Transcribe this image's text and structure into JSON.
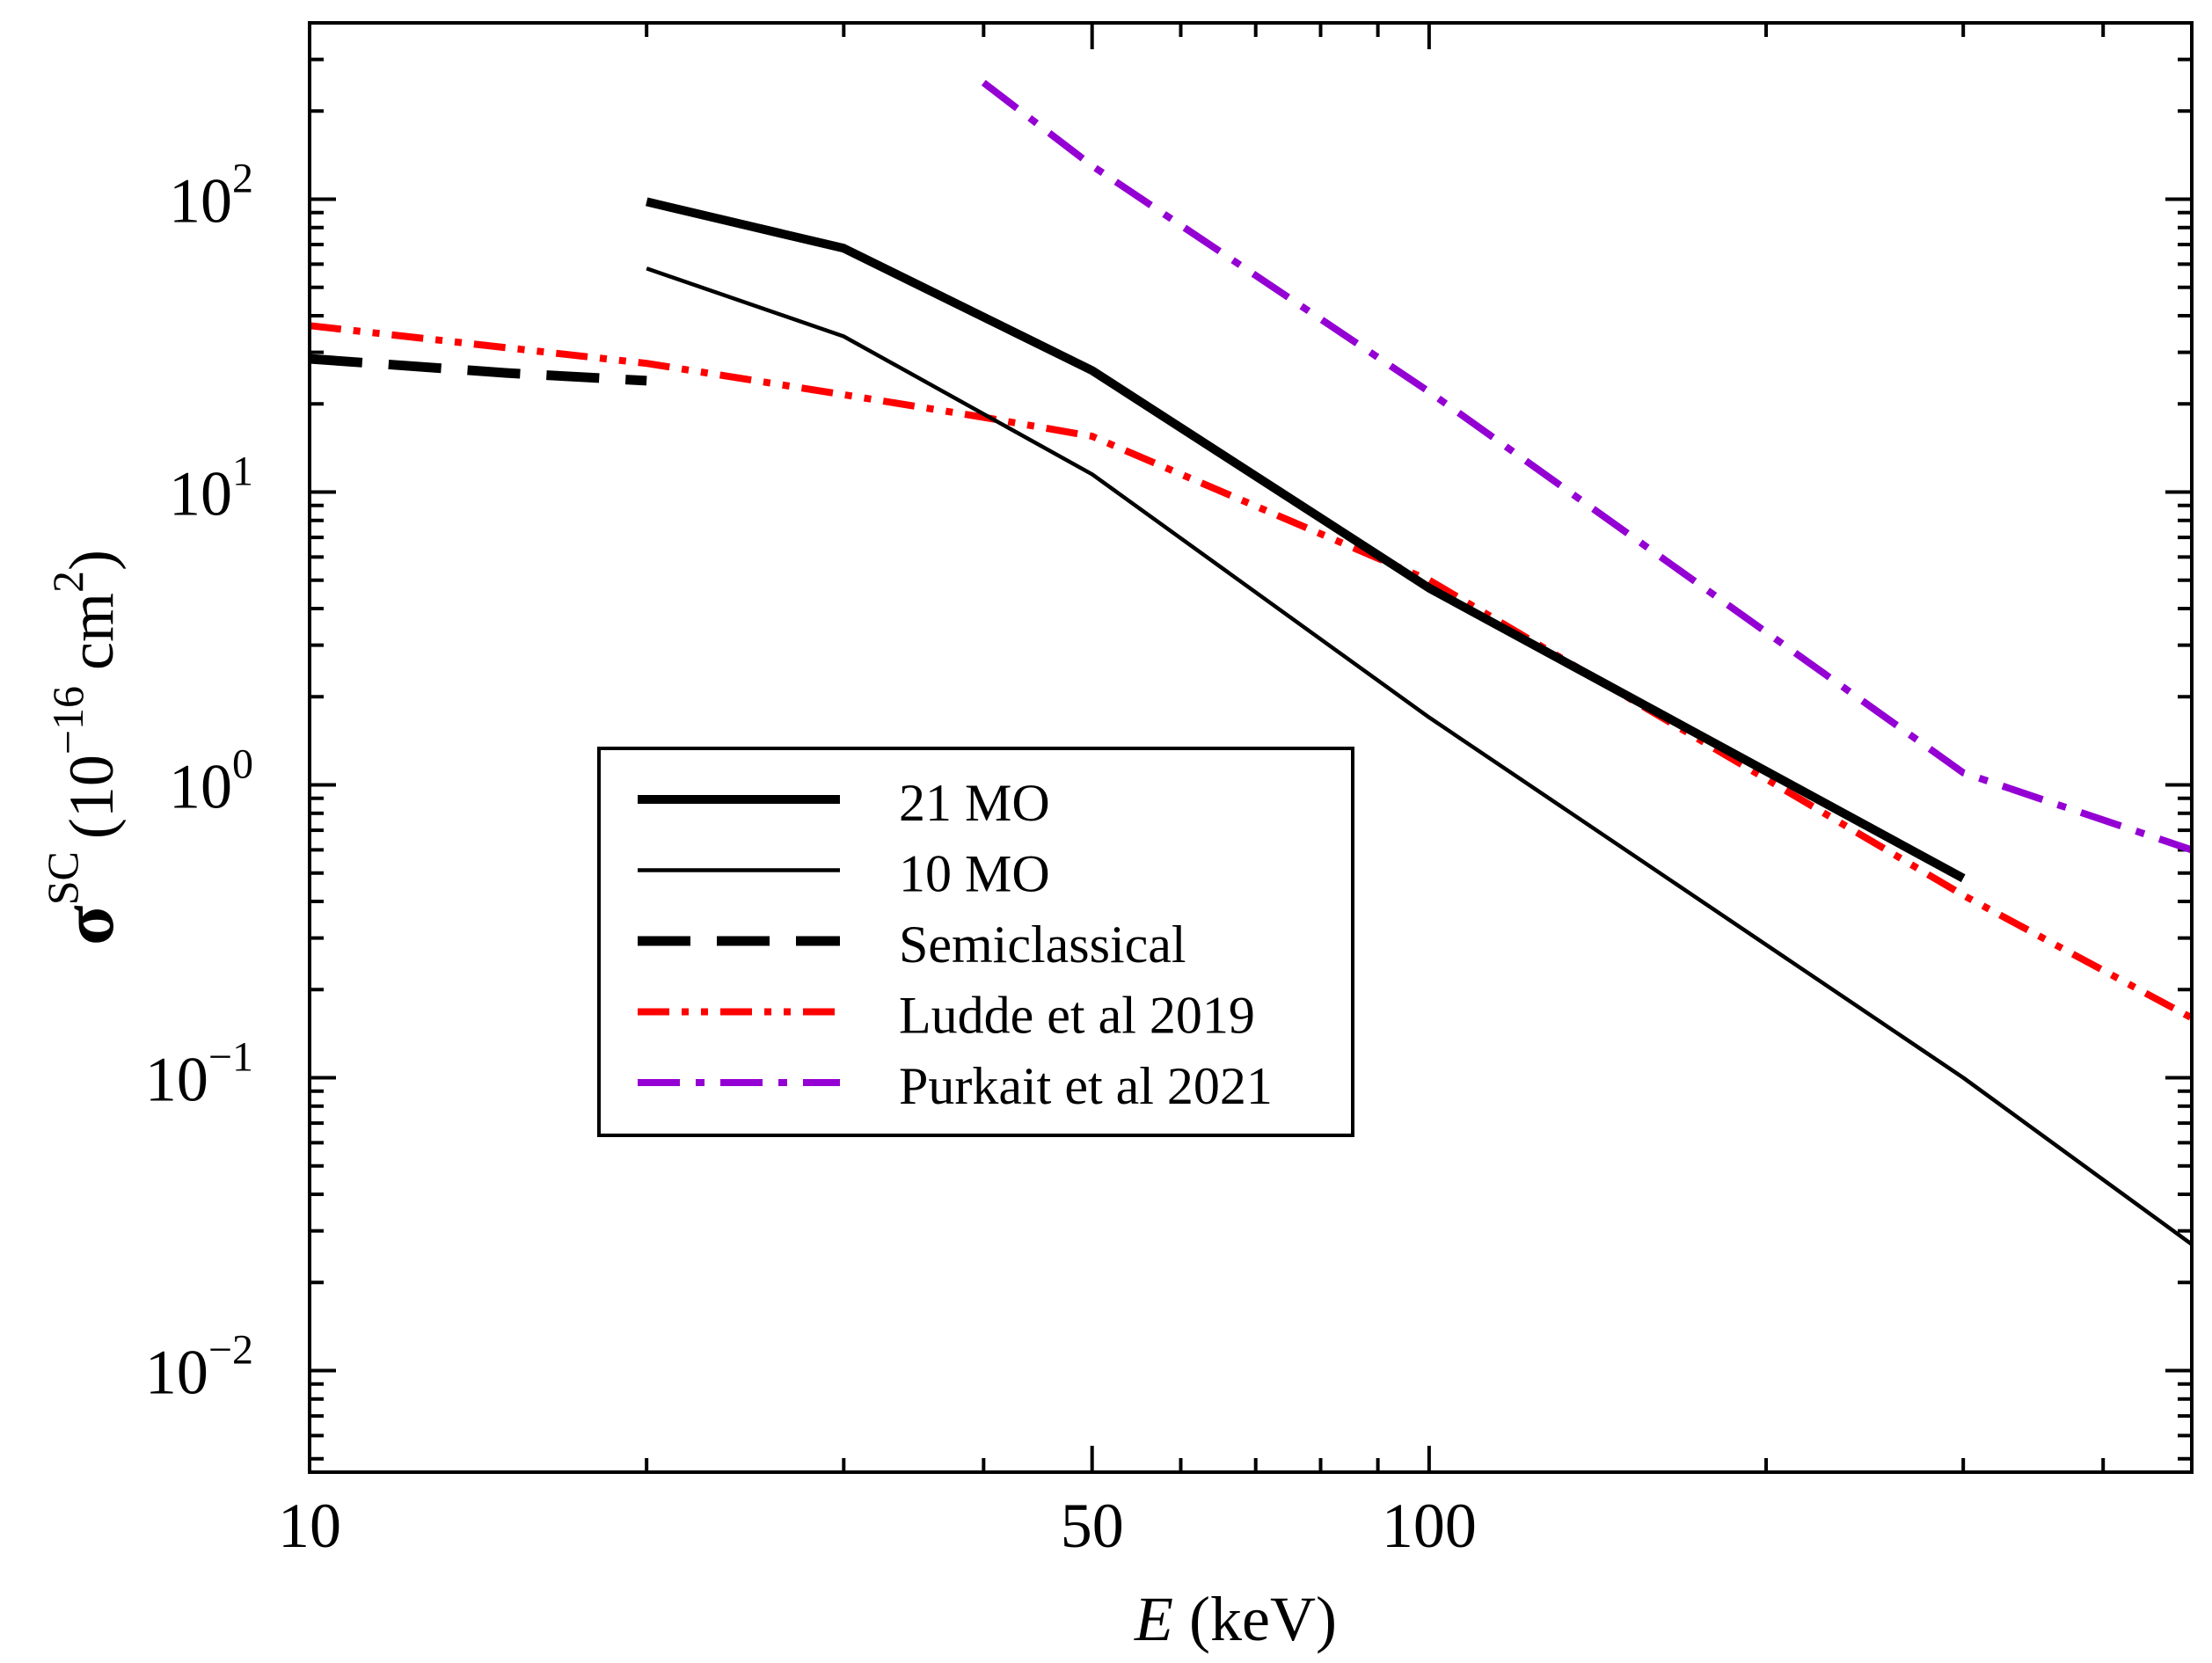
{
  "chart_data": {
    "type": "line",
    "x_scale": "log",
    "y_scale": "log",
    "xlim": [
      10,
      480
    ],
    "ylim": [
      0.0045,
      400
    ],
    "x_ticks": [
      {
        "value": 10,
        "label": "10"
      },
      {
        "value": 50,
        "label": "50"
      },
      {
        "value": 100,
        "label": "100"
      }
    ],
    "x_minor_ticks": [
      20,
      30,
      40,
      60,
      70,
      80,
      90,
      200,
      300,
      400
    ],
    "y_ticks": [
      {
        "value": 0.01,
        "mant": "10",
        "exp": "−2"
      },
      {
        "value": 0.1,
        "mant": "10",
        "exp": "−1"
      },
      {
        "value": 1,
        "mant": "10",
        "exp": "0"
      },
      {
        "value": 10,
        "mant": "10",
        "exp": "1"
      },
      {
        "value": 100,
        "mant": "10",
        "exp": "2"
      }
    ],
    "xlabel": {
      "italic": "E",
      "rest": " (keV)"
    },
    "ylabel": {
      "symbol": "σ",
      "sup": "SC",
      "unit_open": "(10",
      "unit_exp": "−16",
      "unit_mid": " cm",
      "unit_exp2": "2",
      "unit_close": ")"
    },
    "legend_position": "center-left",
    "series": [
      {
        "name": "21 MO",
        "style": "solid-thick",
        "color": "#000000",
        "x": [
          20,
          30,
          50,
          100,
          300
        ],
        "y": [
          98,
          68,
          26,
          4.7,
          0.48
        ]
      },
      {
        "name": "10 MO",
        "style": "solid-thin",
        "color": "#000000",
        "x": [
          20,
          30,
          50,
          100,
          300,
          480
        ],
        "y": [
          58,
          34,
          11.5,
          1.7,
          0.1,
          0.027
        ]
      },
      {
        "name": "Semiclassical",
        "style": "dashed-thick",
        "color": "#000000",
        "x": [
          10,
          15,
          20
        ],
        "y": [
          28.5,
          25.5,
          24
        ]
      },
      {
        "name": "Ludde et al 2019",
        "style": "dash-dot-dot",
        "color": "#ff0000",
        "x": [
          10,
          20,
          30,
          40,
          50,
          100,
          300,
          480
        ],
        "y": [
          37,
          27.5,
          21.5,
          18,
          15.5,
          5,
          0.42,
          0.16
        ]
      },
      {
        "name": "Purkait et al 2021",
        "style": "dash-dot",
        "color": "#9400d3",
        "x": [
          40,
          50,
          100,
          300,
          480
        ],
        "y": [
          250,
          130,
          22,
          1.1,
          0.6
        ]
      }
    ]
  }
}
